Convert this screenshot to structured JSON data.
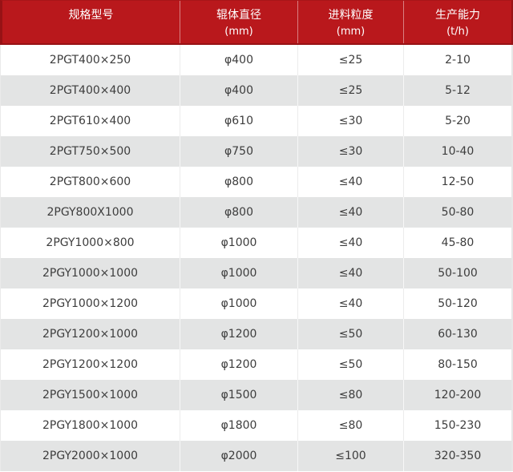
{
  "chart_data": {
    "type": "table",
    "title": "",
    "columns": [
      {
        "label": "规格型号",
        "unit": ""
      },
      {
        "label": "辊体直径",
        "unit": "(mm)"
      },
      {
        "label": "进料粒度",
        "unit": "(mm)"
      },
      {
        "label": "生产能力",
        "unit": "(t/h)"
      }
    ],
    "rows": [
      [
        "2PGT400×250",
        "φ400",
        "≤25",
        "2-10"
      ],
      [
        "2PGT400×400",
        "φ400",
        "≤25",
        "5-12"
      ],
      [
        "2PGT610×400",
        "φ610",
        "≤30",
        "5-20"
      ],
      [
        "2PGT750×500",
        "φ750",
        "≤30",
        "10-40"
      ],
      [
        "2PGT800×600",
        "φ800",
        "≤40",
        "12-50"
      ],
      [
        "2PGY800X1000",
        "φ800",
        "≤40",
        "50-80"
      ],
      [
        "2PGY1000×800",
        "φ1000",
        "≤40",
        "45-80"
      ],
      [
        "2PGY1000×1000",
        "φ1000",
        "≤40",
        "50-100"
      ],
      [
        "2PGY1000×1200",
        "φ1000",
        "≤40",
        "50-120"
      ],
      [
        "2PGY1200×1000",
        "φ1200",
        "≤50",
        "60-130"
      ],
      [
        "2PGY1200×1200",
        "φ1200",
        "≤50",
        "80-150"
      ],
      [
        "2PGY1500×1000",
        "φ1500",
        "≤80",
        "120-200"
      ],
      [
        "2PGY1800×1000",
        "φ1800",
        "≤80",
        "150-230"
      ],
      [
        "2PGY2000×1000",
        "φ2000",
        "≤100",
        "320-350"
      ]
    ],
    "layout": {
      "legend": "none",
      "grid": "on",
      "zebra_striping": true
    }
  },
  "colors": {
    "header_bg": "#b9181c",
    "header_border": "#971215",
    "header_text": "#ffffff",
    "row_bg": "#ffffff",
    "row_alt_bg": "#e3e4e4",
    "cell_text": "#3d3d3d",
    "grid_line": "#ececec"
  }
}
